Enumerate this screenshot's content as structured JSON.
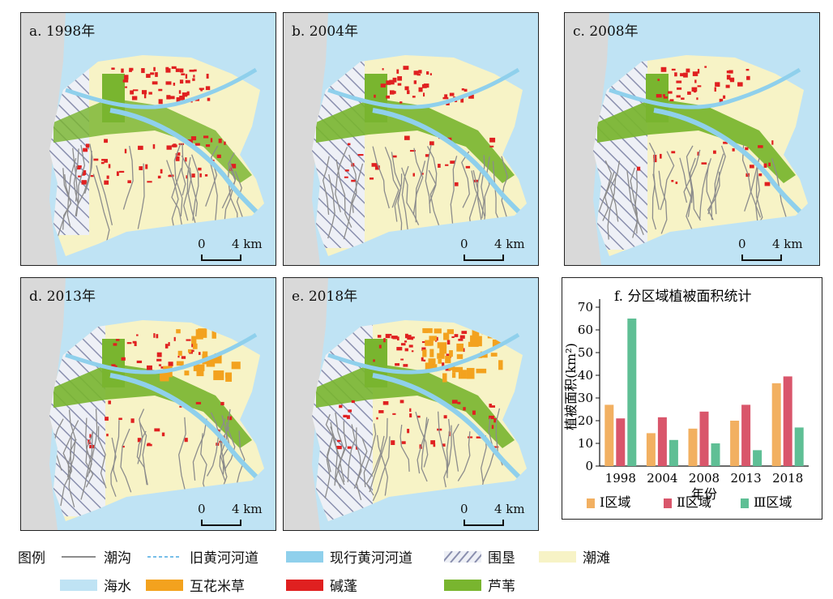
{
  "panels": [
    {
      "label": "a. 1998年",
      "scale_zero": "0",
      "scale_km": "4 km",
      "reclaim": 0.35,
      "spartina": 0,
      "suaeda": 0.9,
      "reed": 0.6
    },
    {
      "label": "b. 2004年",
      "scale_zero": "0",
      "scale_km": "4 km",
      "reclaim": 0.75,
      "spartina": 0,
      "suaeda": 0.55,
      "reed": 0.8
    },
    {
      "label": "c. 2008年",
      "scale_zero": "0",
      "scale_km": "4 km",
      "reclaim": 0.8,
      "spartina": 0,
      "suaeda": 0.5,
      "reed": 0.85
    },
    {
      "label": "d. 2013年",
      "scale_zero": "0",
      "scale_km": "4 km",
      "reclaim": 0.85,
      "spartina": 0.6,
      "suaeda": 0.45,
      "reed": 0.8
    },
    {
      "label": "e. 2018年",
      "scale_zero": "0",
      "scale_km": "4 km",
      "reclaim": 1.0,
      "spartina": 1.0,
      "suaeda": 0.7,
      "reed": 0.8
    }
  ],
  "chart_data": {
    "type": "bar",
    "title": "f. 分区域植被面积统计",
    "xlabel": "年份",
    "ylabel": "植被面积(km²)",
    "ylim": [
      0,
      70
    ],
    "yticks": [
      0,
      10,
      20,
      30,
      40,
      50,
      60,
      70
    ],
    "categories": [
      "1998",
      "2004",
      "2008",
      "2013",
      "2018"
    ],
    "series": [
      {
        "name": "Ⅰ区域",
        "color": "#f2b061",
        "values": [
          27,
          14.5,
          16.5,
          20,
          36.5
        ]
      },
      {
        "name": "Ⅱ区域",
        "color": "#d9566b",
        "values": [
          21,
          21.5,
          24,
          27,
          39.5
        ]
      },
      {
        "name": "Ⅲ区域",
        "color": "#5fbf95",
        "values": [
          65,
          11.5,
          10,
          7,
          17
        ]
      }
    ],
    "legend": "bottom"
  },
  "legend": {
    "title": "图例",
    "items": [
      {
        "label": "潮沟",
        "icon": "line-dark"
      },
      {
        "label": "旧黄河河道",
        "icon": "line-dashed-blue"
      },
      {
        "label": "现行黄河河道",
        "icon": "fill-lightblue"
      },
      {
        "label": "围垦",
        "icon": "hatch"
      },
      {
        "label": "潮滩",
        "icon": "fill-cream"
      },
      {
        "label": "海水",
        "icon": "fill-sea"
      },
      {
        "label": "互花米草",
        "icon": "fill-orange"
      },
      {
        "label": "碱蓬",
        "icon": "fill-red"
      },
      {
        "label": "芦苇",
        "icon": "fill-green"
      }
    ]
  },
  "colors": {
    "sea": "#bfe3f4",
    "land": "#d9d9d9",
    "tidal_flat": "#f7f3c6",
    "reed": "#79b52f",
    "suaeda": "#e02020",
    "spartina": "#f3a21e",
    "river": "#8fd0ec",
    "creek": "#8c8c8c",
    "hatch": "#8a8fae"
  }
}
